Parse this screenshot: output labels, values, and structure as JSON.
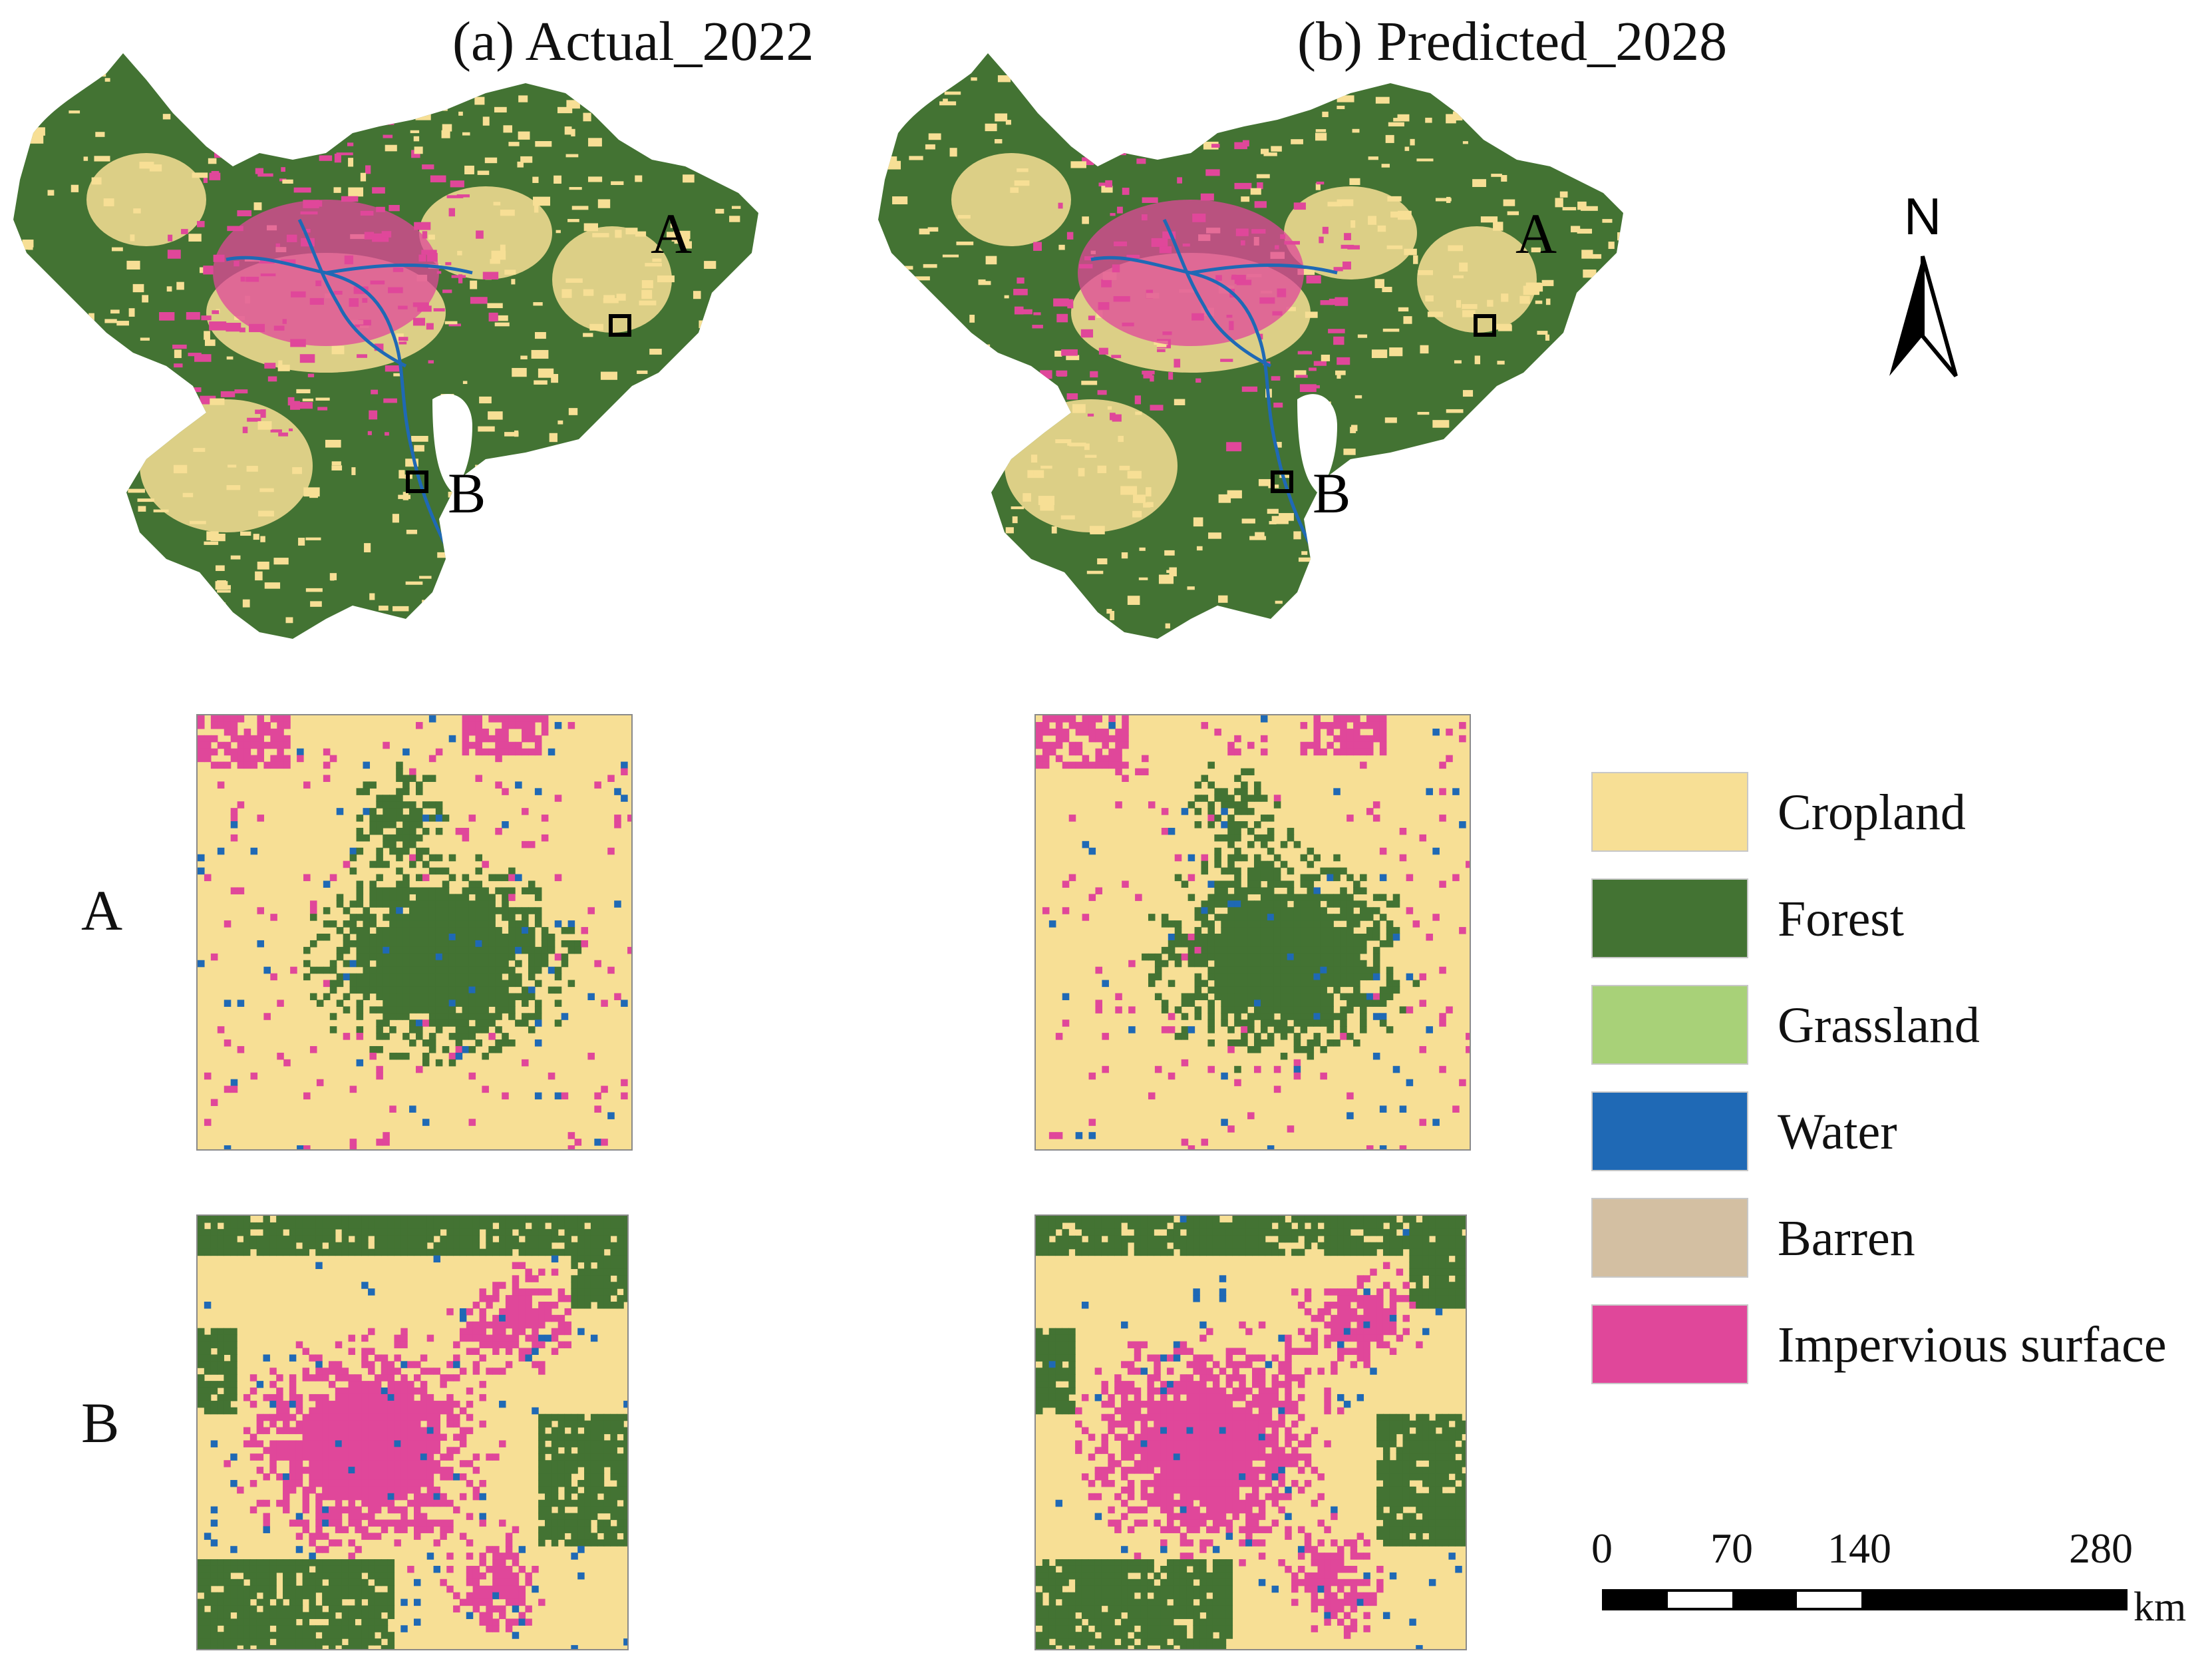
{
  "panels": [
    {
      "title": "(a) Actual_2022"
    },
    {
      "title": "(b) Predicted_2028"
    }
  ],
  "markers": {
    "a": "A",
    "b": "B"
  },
  "rows": [
    {
      "label": "A"
    },
    {
      "label": "B"
    }
  ],
  "legend": [
    {
      "label": "Cropland",
      "color": "#F7DF95"
    },
    {
      "label": "Forest",
      "color": "#437333"
    },
    {
      "label": "Grassland",
      "color": "#A8D178"
    },
    {
      "label": "Water",
      "color": "#1F69B5"
    },
    {
      "label": "Barren",
      "color": "#D3BFA2"
    },
    {
      "label": "Impervious surface",
      "color": "#E0479A"
    }
  ],
  "north_arrow": {
    "label": "N"
  },
  "scale_bar": {
    "ticks": [
      "0",
      "70",
      "140",
      "280"
    ],
    "unit": "km"
  }
}
